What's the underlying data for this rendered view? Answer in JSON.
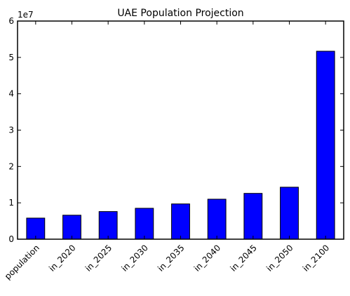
{
  "chart_data": {
    "type": "bar",
    "title": "UAE Population Projection",
    "xlabel": "",
    "ylabel": "",
    "categories": [
      "population",
      "in_2020",
      "in_2025",
      "in_2030",
      "in_2035",
      "in_2040",
      "in_2045",
      "in_2050",
      "in_2100"
    ],
    "values": [
      5800000,
      6600000,
      7600000,
      8500000,
      9700000,
      11000000,
      12600000,
      14300000,
      51700000
    ],
    "ylim": [
      0,
      60000000
    ],
    "yticks": [
      0,
      10000000,
      20000000,
      30000000,
      40000000,
      50000000,
      60000000
    ],
    "ytick_labels": [
      "0",
      "1",
      "2",
      "3",
      "4",
      "5",
      "6"
    ],
    "y_offset_label": "1e7",
    "bar_color": "#0000ff",
    "edge_color": "#000000",
    "grid": false,
    "legend": "none"
  }
}
